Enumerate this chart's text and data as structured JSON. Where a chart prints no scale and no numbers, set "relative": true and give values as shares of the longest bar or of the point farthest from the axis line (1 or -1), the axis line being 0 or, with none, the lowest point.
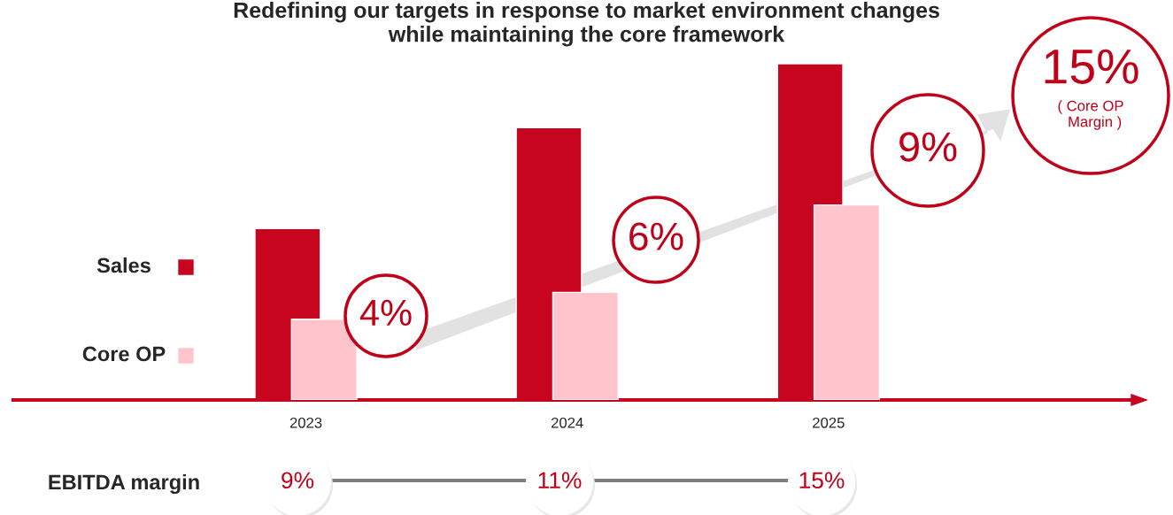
{
  "chart_data": {
    "type": "bar",
    "title": "Redefining our targets in response to market environment changes\nwhile maintaining the core framework",
    "categories": [
      "2023",
      "2024",
      "2025"
    ],
    "series": [
      {
        "name": "Sales",
        "color": "#c8051f",
        "values": [
          0.51,
          0.81,
          1
        ]
      },
      {
        "name": "Core OP",
        "color": "#ffc4cc",
        "values": [
          0.24,
          0.32,
          0.58
        ]
      }
    ],
    "relative": true,
    "legend": "left",
    "grid": false,
    "annotations": [
      "4%",
      "6%",
      "9%",
      "15%\n( Core OP\n  Margin )",
      "EBITDA margin",
      "9%",
      "11%",
      "15%"
    ]
  }
}
